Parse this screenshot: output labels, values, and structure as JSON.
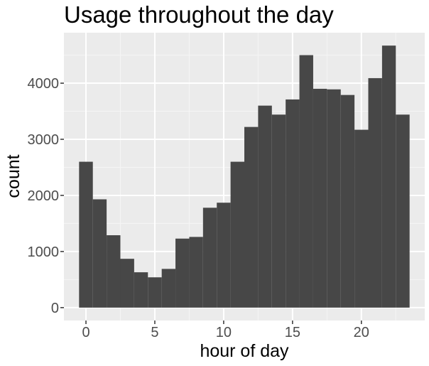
{
  "chart_data": {
    "type": "bar",
    "title": "Usage throughout the day",
    "xlabel": "hour of day",
    "ylabel": "count",
    "categories": [
      0,
      1,
      2,
      3,
      4,
      5,
      6,
      7,
      8,
      9,
      10,
      11,
      12,
      13,
      14,
      15,
      16,
      17,
      18,
      19,
      20,
      21,
      22,
      23
    ],
    "values": [
      2600,
      1930,
      1290,
      870,
      630,
      540,
      690,
      1230,
      1260,
      1780,
      1870,
      2600,
      3220,
      3600,
      3440,
      3710,
      4500,
      3900,
      3890,
      3790,
      3170,
      4090,
      4670,
      3440
    ],
    "xlim": [
      -1.6,
      24.6
    ],
    "ylim": [
      -230,
      4900
    ],
    "x_ticks": [
      0,
      5,
      10,
      15,
      20
    ],
    "y_ticks": [
      0,
      1000,
      2000,
      3000,
      4000
    ],
    "x_tick_labels": [
      "0",
      "5",
      "10",
      "15",
      "20"
    ],
    "y_tick_labels": [
      "0",
      "1000",
      "2000",
      "3000",
      "4000"
    ],
    "grid": true,
    "legend": "none",
    "colors": {
      "bar": "#474747",
      "panel": "#ebebeb",
      "grid_major": "#ffffff",
      "grid_minor": "#f5f5f5",
      "tick_label": "#4d4d4d",
      "tick_mark": "#333333"
    }
  }
}
